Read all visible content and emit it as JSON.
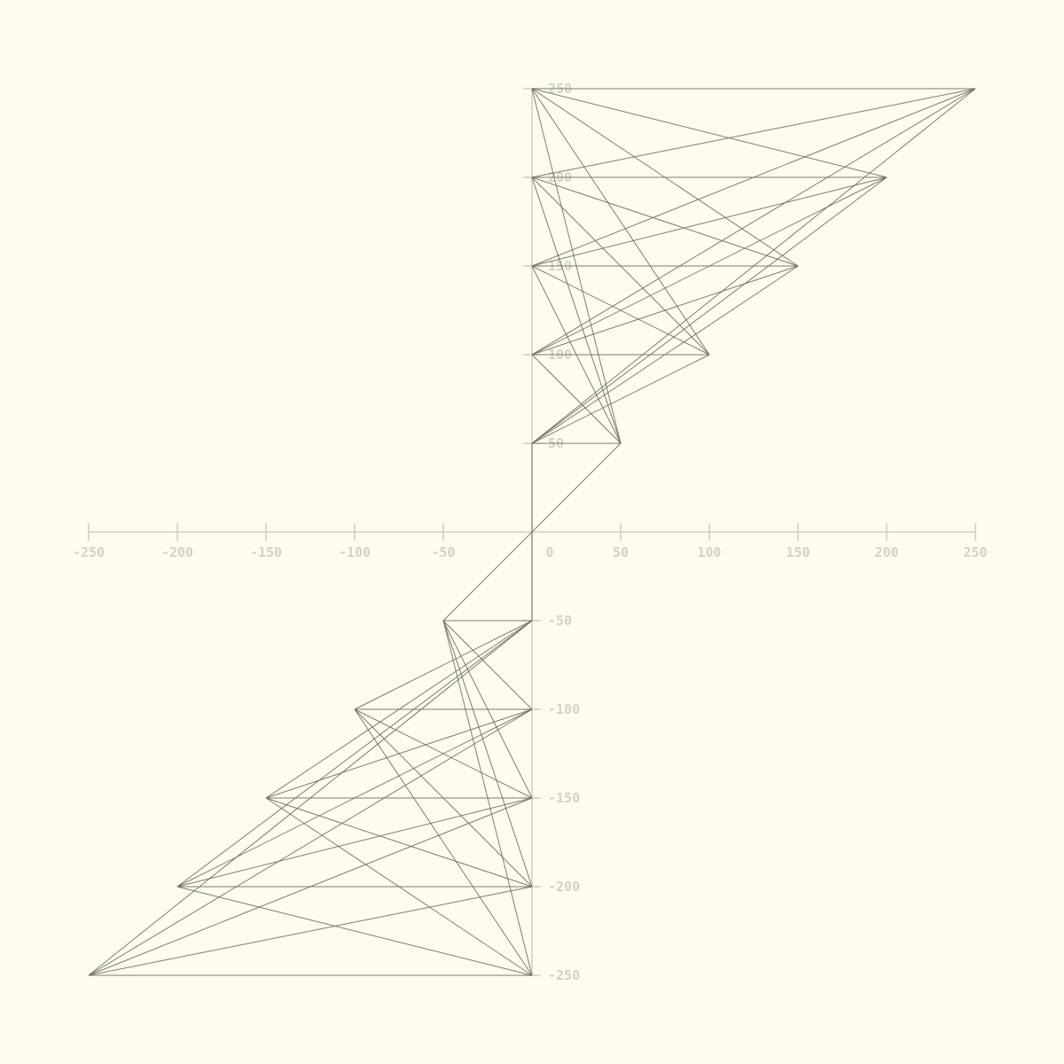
{
  "chart_data": {
    "type": "line-network",
    "x_axis": {
      "range": [
        -250,
        250
      ],
      "ticks": [
        -250,
        -200,
        -150,
        -100,
        -50,
        0,
        50,
        100,
        150,
        200,
        250
      ],
      "tick_labels": [
        "-250",
        "-200",
        "-150",
        "-100",
        "-50",
        "0",
        "50",
        "100",
        "150",
        "200",
        "250"
      ]
    },
    "y_axis": {
      "range": [
        -250,
        250
      ],
      "ticks": [
        -250,
        -200,
        -150,
        -100,
        -50,
        50,
        100,
        150,
        200,
        250
      ],
      "tick_labels": [
        "-250",
        "-200",
        "-150",
        "-100",
        "-50",
        "50",
        "100",
        "150",
        "200",
        "250"
      ]
    },
    "y_axis_nodes": [
      [
        0,
        250
      ],
      [
        0,
        200
      ],
      [
        0,
        150
      ],
      [
        0,
        100
      ],
      [
        0,
        50
      ],
      [
        0,
        -50
      ],
      [
        0,
        -100
      ],
      [
        0,
        -150
      ],
      [
        0,
        -200
      ],
      [
        0,
        -250
      ]
    ],
    "diagonal_nodes": [
      [
        250,
        250
      ],
      [
        200,
        200
      ],
      [
        150,
        150
      ],
      [
        100,
        100
      ],
      [
        50,
        50
      ],
      [
        -50,
        -50
      ],
      [
        -100,
        -100
      ],
      [
        -150,
        -150
      ],
      [
        -200,
        -200
      ],
      [
        -250,
        -250
      ]
    ],
    "connection_rule": "every y-axis node links to every diagonal node in the same half-plane",
    "grid": false,
    "colors": {
      "background": "#fffcef",
      "lines": "#6e6e64",
      "axes": "#cfcfc6",
      "labels": "#d2d2ca"
    }
  }
}
